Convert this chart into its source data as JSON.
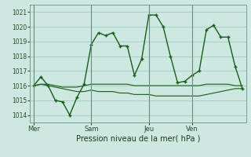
{
  "background_color": "#cce8e0",
  "grid_color": "#aaccC4",
  "line_color": "#1a5c1a",
  "title": "Pression niveau de la mer( hPa )",
  "x_ticks_labels": [
    "Mer",
    "Sam",
    "Jeu",
    "Ven"
  ],
  "x_ticks_pos": [
    0,
    8,
    16,
    22
  ],
  "ylim": [
    1013.5,
    1021.5
  ],
  "yticks": [
    1014,
    1015,
    1016,
    1017,
    1018,
    1019,
    1020,
    1021
  ],
  "series1_x": [
    0,
    1,
    2,
    3,
    4,
    5,
    6,
    7,
    8,
    9,
    10,
    11,
    12,
    13,
    14,
    15,
    16,
    17,
    18,
    19,
    20,
    21,
    22,
    23,
    24,
    25,
    26,
    27,
    28,
    29
  ],
  "series1_y": [
    1016.0,
    1016.6,
    1016.0,
    1015.0,
    1014.9,
    1014.0,
    1015.2,
    1016.1,
    1018.8,
    1019.6,
    1019.4,
    1019.6,
    1018.7,
    1018.7,
    1016.7,
    1017.8,
    1020.8,
    1020.8,
    1020.0,
    1018.0,
    1016.2,
    1016.3,
    1016.7,
    1017.0,
    1019.8,
    1020.1,
    1019.3,
    1019.3,
    1017.3,
    1015.8
  ],
  "series2_x": [
    0,
    1,
    2,
    3,
    4,
    5,
    6,
    7,
    8,
    9,
    10,
    11,
    12,
    13,
    14,
    15,
    16,
    17,
    18,
    19,
    20,
    21,
    22,
    23,
    24,
    25,
    26,
    27,
    28,
    29
  ],
  "series2_y": [
    1016.0,
    1016.1,
    1016.0,
    1015.9,
    1015.8,
    1015.7,
    1015.6,
    1015.6,
    1015.7,
    1015.6,
    1015.6,
    1015.6,
    1015.5,
    1015.5,
    1015.4,
    1015.4,
    1015.4,
    1015.3,
    1015.3,
    1015.3,
    1015.3,
    1015.3,
    1015.3,
    1015.3,
    1015.4,
    1015.5,
    1015.6,
    1015.7,
    1015.8,
    1015.8
  ],
  "series3_x": [
    0,
    1,
    2,
    3,
    4,
    5,
    6,
    7,
    8,
    9,
    10,
    11,
    12,
    13,
    14,
    15,
    16,
    17,
    18,
    19,
    20,
    21,
    22,
    23,
    24,
    25,
    26,
    27,
    28,
    29
  ],
  "series3_y": [
    1016.0,
    1016.1,
    1016.1,
    1016.0,
    1015.9,
    1015.9,
    1015.9,
    1016.0,
    1016.1,
    1016.1,
    1016.1,
    1016.1,
    1016.1,
    1016.1,
    1016.0,
    1016.0,
    1016.0,
    1016.0,
    1016.0,
    1016.0,
    1016.0,
    1016.0,
    1016.0,
    1016.0,
    1016.1,
    1016.1,
    1016.1,
    1016.1,
    1016.0,
    1016.0
  ],
  "xlim": [
    -0.5,
    29.5
  ],
  "vlines_x": [
    0,
    8,
    16,
    22
  ]
}
